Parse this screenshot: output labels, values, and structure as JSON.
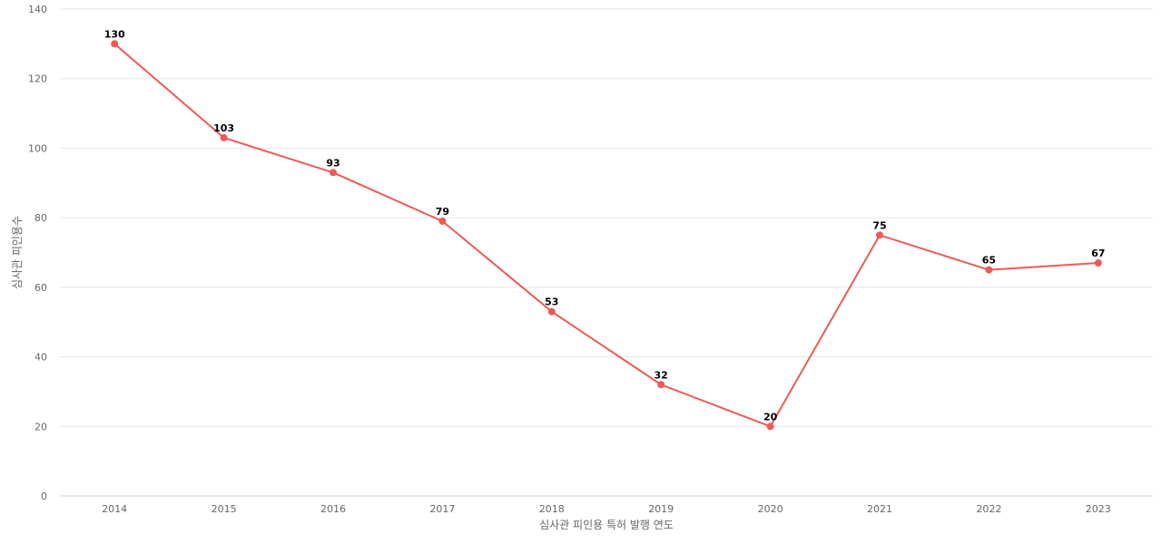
{
  "chart_data": {
    "type": "line",
    "title": "",
    "xlabel": "심사관 피인용 특허 발행 연도",
    "ylabel": "심사관 피인용수",
    "categories": [
      "2014",
      "2015",
      "2016",
      "2017",
      "2018",
      "2019",
      "2020",
      "2021",
      "2022",
      "2023"
    ],
    "series": [
      {
        "values": [
          130,
          103,
          93,
          79,
          53,
          32,
          20,
          75,
          65,
          67
        ],
        "color": "#ee5a57"
      }
    ],
    "ylim": [
      0,
      140
    ],
    "yticks": [
      0,
      20,
      40,
      60,
      80,
      100,
      120,
      140
    ],
    "grid": true,
    "legend": "none",
    "data_labels": true
  }
}
